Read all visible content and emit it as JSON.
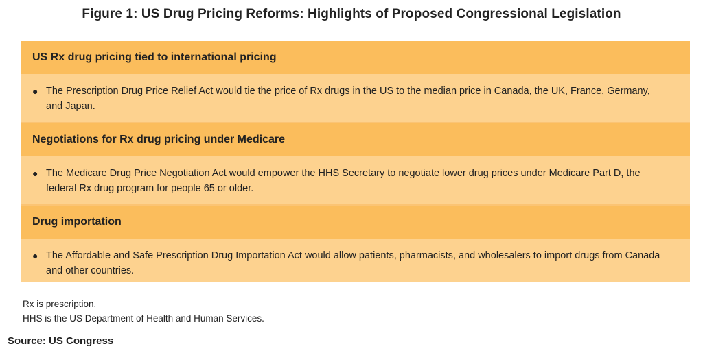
{
  "title": "Figure 1: US Drug Pricing Reforms: Highlights of Proposed Congressional Legislation",
  "sections": [
    {
      "heading": "US Rx drug pricing tied to international pricing",
      "bullet": "The Prescription Drug Price Relief Act would tie the price of Rx drugs in the US to the median price in Canada, the UK, France, Germany, and Japan."
    },
    {
      "heading": "Negotiations for Rx drug pricing under Medicare",
      "bullet": "The Medicare Drug Price Negotiation Act would empower the HHS Secretary to negotiate lower drug prices under Medicare Part D, the federal Rx drug program for people 65 or older."
    },
    {
      "heading": "Drug importation",
      "bullet": "The Affordable and Safe Prescription Drug Importation Act would allow patients, pharmacists, and wholesalers to import drugs from Canada and other countries."
    }
  ],
  "bullet_glyph": "●",
  "notes": [
    "Rx is prescription.",
    "HHS is the US Department of Health and Human Services."
  ],
  "source": "Source: US Congress",
  "colors": {
    "header_bg": "#fbbd5c",
    "body_bg": "#fdd28f"
  }
}
